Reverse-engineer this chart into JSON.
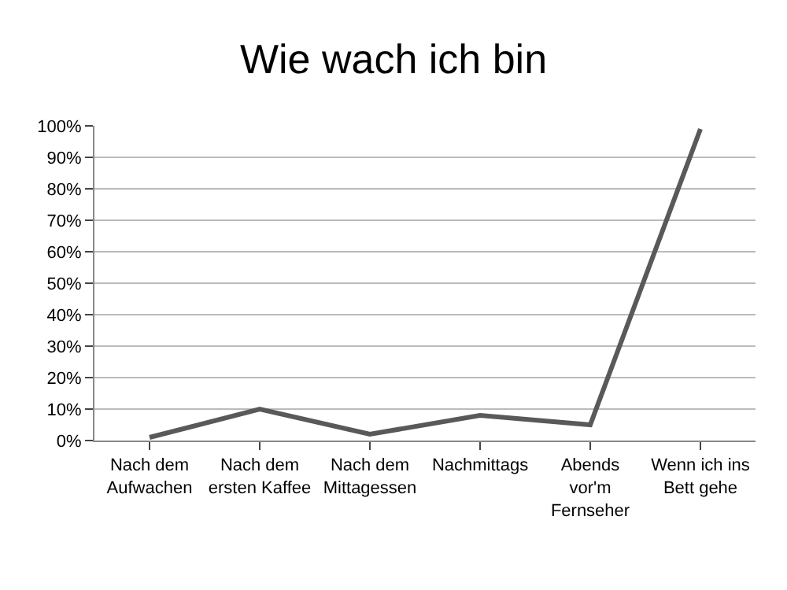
{
  "chart_data": {
    "type": "line",
    "title": "Wie wach ich bin",
    "categories": [
      "Nach dem\nAufwachen",
      "Nach dem\nersten Kaffee",
      "Nach dem\nMittagessen",
      "Nachmittags",
      "Abends\nvor'm\nFernseher",
      "Wenn ich ins\nBett gehe"
    ],
    "series": [
      {
        "color": "#595959",
        "values": [
          1,
          10,
          2,
          8,
          5,
          99
        ]
      }
    ],
    "ylim": [
      0,
      100
    ],
    "yticks": [
      {
        "value": 0,
        "label": "0%"
      },
      {
        "value": 10,
        "label": "10%"
      },
      {
        "value": 20,
        "label": "20%"
      },
      {
        "value": 30,
        "label": "30%"
      },
      {
        "value": 40,
        "label": "40%"
      },
      {
        "value": 50,
        "label": "50%"
      },
      {
        "value": 60,
        "label": "60%"
      },
      {
        "value": 70,
        "label": "70%"
      },
      {
        "value": 80,
        "label": "80%"
      },
      {
        "value": 90,
        "label": "90%"
      },
      {
        "value": 100,
        "label": "100%"
      }
    ],
    "grid": "y",
    "legend": false,
    "marker": "none",
    "line_style": "solid"
  }
}
